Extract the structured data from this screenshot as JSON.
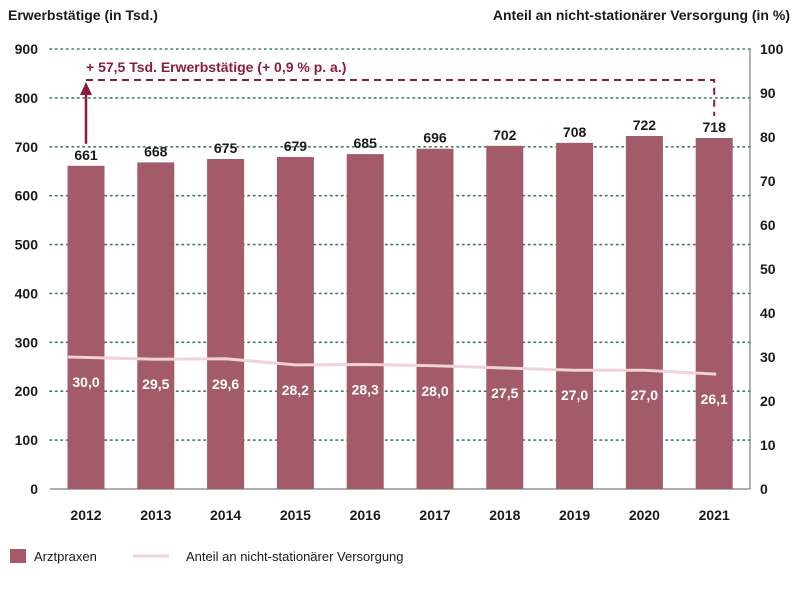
{
  "chart_data": {
    "type": "bar",
    "title": "",
    "categories": [
      "2012",
      "2013",
      "2014",
      "2015",
      "2016",
      "2017",
      "2018",
      "2019",
      "2020",
      "2021"
    ],
    "series": [
      {
        "name": "Arztpraxen",
        "type": "bar",
        "axis": "left",
        "values": [
          661,
          668,
          675,
          679,
          685,
          696,
          702,
          708,
          722,
          718
        ],
        "labels": [
          "661",
          "668",
          "675",
          "679",
          "685",
          "696",
          "702",
          "708",
          "722",
          "718"
        ]
      },
      {
        "name": "Anteil an nicht-stationärer Versorgung",
        "type": "line",
        "axis": "right",
        "values": [
          30.0,
          29.5,
          29.6,
          28.2,
          28.3,
          28.0,
          27.5,
          27.0,
          27.0,
          26.1
        ],
        "labels": [
          "30,0",
          "29,5",
          "29,6",
          "28,2",
          "28,3",
          "28,0",
          "27,5",
          "27,0",
          "27,0",
          "26,1"
        ]
      }
    ],
    "ylabel_left": "Erwerbstätige (in Tsd.)",
    "ylabel_right": "Anteil an nicht-stationärer Versorgung (in %)",
    "ylim_left": [
      0,
      900
    ],
    "ylim_right": [
      0,
      100
    ],
    "yticks_left": [
      "0",
      "100",
      "200",
      "300",
      "400",
      "500",
      "600",
      "700",
      "800",
      "900"
    ],
    "yticks_right": [
      "0",
      "10",
      "20",
      "30",
      "40",
      "50",
      "60",
      "70",
      "80",
      "90",
      "100"
    ],
    "grid": "dotted",
    "legend_position": "bottom-left",
    "annotation": "+ 57,5 Tsd. Erwerbstätige (+ 0,9 % p. a.)",
    "colors": {
      "bar": "#a35b69",
      "line": "#efd3d7",
      "annotation": "#8a1d3a",
      "grid": "#3d7a66"
    }
  }
}
